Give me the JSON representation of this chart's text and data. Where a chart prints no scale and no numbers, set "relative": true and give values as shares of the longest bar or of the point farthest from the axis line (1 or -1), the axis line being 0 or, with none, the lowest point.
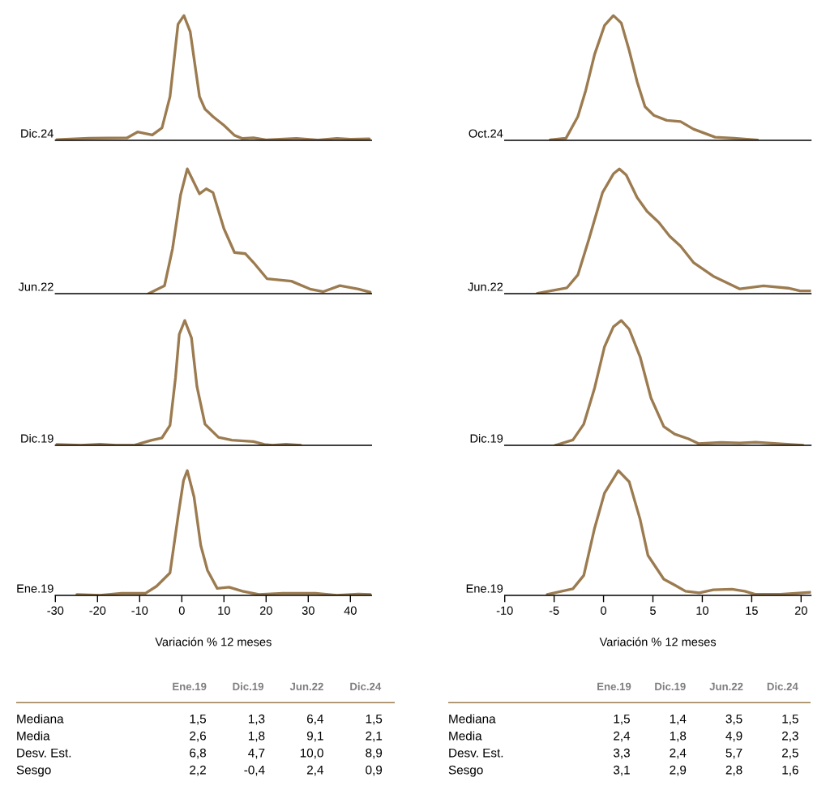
{
  "chart_data": [
    {
      "type": "line",
      "ylabel": "Dic.24",
      "relative": true,
      "xlim": [
        -30,
        45
      ],
      "tick_labels": false,
      "color": "#9b7b4f",
      "x": [
        -29.7,
        -22.0,
        -13.0,
        -10.5,
        -7.0,
        -4.7,
        -2.8,
        -0.9,
        0.5,
        2.0,
        4.2,
        5.5,
        7.4,
        10.0,
        12.5,
        14.4,
        17.0,
        20.2,
        27.2,
        32.3,
        36.8,
        40.0,
        44.5
      ],
      "values": [
        0.006,
        0.017,
        0.02,
        0.067,
        0.043,
        0.1,
        0.35,
        0.93,
        1.0,
        0.87,
        0.35,
        0.25,
        0.19,
        0.12,
        0.04,
        0.015,
        0.02,
        0.003,
        0.015,
        0.003,
        0.015,
        0.009,
        0.012
      ]
    },
    {
      "type": "line",
      "ylabel": "Jun.22",
      "relative": true,
      "xlim": [
        -30,
        45
      ],
      "tick_labels": false,
      "color": "#9b7b4f",
      "x": [
        -7.9,
        -4.1,
        -2.2,
        -0.3,
        1.3,
        4.2,
        5.8,
        7.4,
        10.0,
        12.5,
        15.1,
        17.0,
        20.2,
        26.0,
        30.4,
        33.6,
        37.5,
        41.9,
        44.8
      ],
      "values": [
        0,
        0.064,
        0.36,
        0.79,
        1.0,
        0.8,
        0.84,
        0.81,
        0.52,
        0.33,
        0.32,
        0.25,
        0.12,
        0.1,
        0.037,
        0.016,
        0.064,
        0.037,
        0.01
      ]
    },
    {
      "type": "line",
      "ylabel": "Dic.19",
      "relative": true,
      "xlim": [
        -30,
        45
      ],
      "tick_labels": false,
      "color": "#9b7b4f",
      "x": [
        -29.7,
        -23.9,
        -19.4,
        -15.6,
        -11.1,
        -7.3,
        -4.7,
        -2.8,
        -1.5,
        -0.6,
        0.7,
        2.3,
        3.6,
        5.5,
        8.7,
        11.9,
        17.0,
        19.6,
        21.5,
        24.7,
        28.2
      ],
      "values": [
        0.007,
        0,
        0.009,
        0,
        0.002,
        0.04,
        0.06,
        0.16,
        0.54,
        0.89,
        1.0,
        0.86,
        0.47,
        0.17,
        0.064,
        0.041,
        0.03,
        0.007,
        0,
        0.009,
        0
      ]
    },
    {
      "type": "line",
      "ylabel": "Ene.19",
      "xlabel": "Variación % 12 meses",
      "relative": true,
      "xlim": [
        -30,
        45
      ],
      "xticks": [
        -30,
        -20,
        -10,
        0,
        10,
        20,
        30,
        40
      ],
      "tick_labels": "x",
      "color": "#9b7b4f",
      "x": [
        -24.9,
        -19.4,
        -14.3,
        -8.6,
        -6.0,
        -2.8,
        -0.9,
        0.4,
        1.3,
        2.9,
        4.5,
        6.1,
        8.4,
        11.2,
        14.4,
        18.3,
        24.0,
        31.7,
        36.8,
        41.9,
        44.8
      ],
      "values": [
        0.007,
        0,
        0.017,
        0.017,
        0.073,
        0.18,
        0.63,
        0.92,
        1.0,
        0.79,
        0.4,
        0.2,
        0.056,
        0.066,
        0.033,
        0.007,
        0.017,
        0.017,
        0,
        0.01,
        0.007
      ]
    },
    {
      "type": "other",
      "categories": [
        "Ene.19",
        "Dic.19",
        "Jun.22",
        "Dic.24"
      ],
      "y_categories": [
        "Mediana",
        "Media",
        "Desv. Est.",
        "Sesgo"
      ],
      "cell_labels": [
        [
          "1,5",
          "1,3",
          "6,4",
          "1,5"
        ],
        [
          "2,6",
          "1,8",
          "9,1",
          "2,1"
        ],
        [
          "6,8",
          "4,7",
          "10,0",
          "8,9"
        ],
        [
          "2,2",
          "-0,4",
          "2,4",
          "0,9"
        ]
      ]
    },
    {
      "type": "line",
      "ylabel": "Oct.24",
      "relative": true,
      "xlim": [
        -10,
        21
      ],
      "tick_labels": false,
      "color": "#9b7b4f",
      "x": [
        -5.4,
        -3.8,
        -2.6,
        -1.8,
        -0.9,
        0.1,
        1.0,
        1.8,
        2.6,
        3.4,
        4.2,
        5.1,
        6.4,
        7.8,
        9.1,
        11.3,
        13.2,
        15.6
      ],
      "values": [
        0.004,
        0.017,
        0.19,
        0.4,
        0.69,
        0.92,
        1.0,
        0.94,
        0.72,
        0.47,
        0.27,
        0.2,
        0.16,
        0.15,
        0.09,
        0.025,
        0.017,
        0.002
      ]
    },
    {
      "type": "line",
      "ylabel": "Jun.22",
      "relative": true,
      "xlim": [
        -10,
        21
      ],
      "tick_labels": false,
      "color": "#9b7b4f",
      "x": [
        -6.7,
        -3.7,
        -2.6,
        -1.5,
        -0.1,
        1.0,
        1.6,
        2.3,
        3.4,
        4.4,
        5.6,
        6.7,
        7.8,
        9.1,
        11.1,
        13.8,
        16.2,
        18.7,
        19.9,
        21.0
      ],
      "values": [
        0.003,
        0.047,
        0.15,
        0.43,
        0.81,
        0.96,
        1.0,
        0.95,
        0.77,
        0.66,
        0.57,
        0.46,
        0.38,
        0.25,
        0.14,
        0.038,
        0.063,
        0.044,
        0.022,
        0.022
      ]
    },
    {
      "type": "line",
      "ylabel": "Dic.19",
      "relative": true,
      "xlim": [
        -10,
        21
      ],
      "tick_labels": false,
      "color": "#9b7b4f",
      "x": [
        -4.9,
        -3.1,
        -2.0,
        -0.9,
        0.1,
        1.0,
        1.8,
        2.6,
        3.7,
        4.8,
        6.1,
        7.2,
        8.6,
        9.6,
        11.9,
        13.8,
        15.4,
        17.6,
        20.2
      ],
      "values": [
        0,
        0.043,
        0.17,
        0.46,
        0.79,
        0.95,
        1.0,
        0.93,
        0.71,
        0.38,
        0.15,
        0.09,
        0.052,
        0.014,
        0.023,
        0.019,
        0.025,
        0.014,
        0
      ]
    },
    {
      "type": "line",
      "ylabel": "Ene.19",
      "xlabel": "Variación % 12 meses",
      "relative": true,
      "xlim": [
        -10,
        21
      ],
      "xticks": [
        -10,
        -5,
        0,
        5,
        10,
        15,
        20
      ],
      "tick_labels": "x",
      "color": "#9b7b4f",
      "x": [
        -5.7,
        -3.1,
        -2.0,
        -0.9,
        0.1,
        1.5,
        2.6,
        3.7,
        4.5,
        6.1,
        7.2,
        8.3,
        9.7,
        11.1,
        13.0,
        14.3,
        15.4,
        17.9,
        21.0
      ],
      "values": [
        0.008,
        0.053,
        0.16,
        0.54,
        0.82,
        1.0,
        0.91,
        0.61,
        0.32,
        0.13,
        0.083,
        0.033,
        0.02,
        0.045,
        0.05,
        0.033,
        0.008,
        0.008,
        0.025
      ]
    },
    {
      "type": "other",
      "categories": [
        "Ene.19",
        "Dic.19",
        "Jun.22",
        "Dic.24"
      ],
      "y_categories": [
        "Mediana",
        "Media",
        "Desv. Est.",
        "Sesgo"
      ],
      "cell_labels": [
        [
          "1,5",
          "1,4",
          "3,5",
          "1,5"
        ],
        [
          "2,4",
          "1,8",
          "4,9",
          "2,3"
        ],
        [
          "3,3",
          "2,4",
          "5,7",
          "2,5"
        ],
        [
          "3,1",
          "2,9",
          "2,8",
          "1,6"
        ]
      ]
    }
  ]
}
